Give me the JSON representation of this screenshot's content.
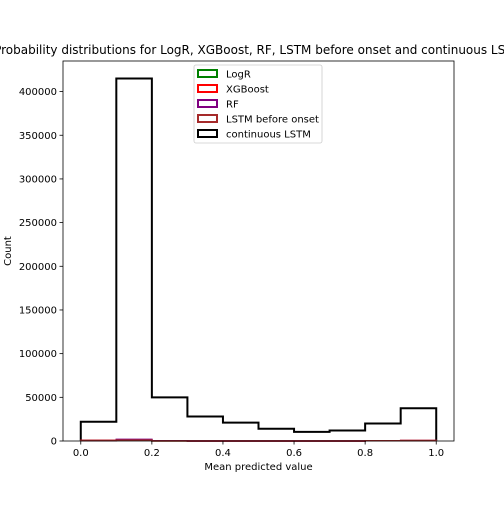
{
  "chart_data": {
    "type": "bar",
    "title": "Probability distributions for LogR, XGBoost, RF, LSTM before onset and continuous LSTM",
    "xlabel": "Mean predicted value",
    "ylabel": "Count",
    "xlim": [
      -0.05,
      1.05
    ],
    "ylim": [
      0,
      435000
    ],
    "bin_edges": [
      0.0,
      0.1,
      0.2,
      0.3,
      0.4,
      0.5,
      0.6,
      0.7,
      0.8,
      0.9,
      1.0
    ],
    "x_ticks": [
      0.0,
      0.2,
      0.4,
      0.6,
      0.8,
      1.0
    ],
    "x_tick_labels": [
      "0.0",
      "0.2",
      "0.4",
      "0.6",
      "0.8",
      "1.0"
    ],
    "y_ticks": [
      0,
      50000,
      100000,
      150000,
      200000,
      250000,
      300000,
      350000,
      400000
    ],
    "y_tick_labels": [
      "0",
      "50000",
      "100000",
      "150000",
      "200000",
      "250000",
      "300000",
      "350000",
      "400000"
    ],
    "histtype": "step",
    "grid": false,
    "legend_position": "top-center",
    "series": [
      {
        "name": "LogR",
        "color": "#008000",
        "values": [
          600,
          1200,
          200,
          50,
          30,
          20,
          15,
          20,
          300,
          500
        ]
      },
      {
        "name": "XGBoost",
        "color": "#ff0000",
        "values": [
          700,
          1500,
          200,
          50,
          30,
          20,
          15,
          20,
          350,
          600
        ]
      },
      {
        "name": "RF",
        "color": "#800080",
        "values": [
          500,
          1800,
          250,
          60,
          40,
          25,
          15,
          25,
          300,
          400
        ]
      },
      {
        "name": "LSTM before onset",
        "color": "#a52a2a",
        "values": [
          400,
          1000,
          150,
          50,
          30,
          20,
          15,
          20,
          250,
          350
        ]
      },
      {
        "name": "continuous LSTM",
        "color": "#000000",
        "values": [
          22000,
          415000,
          50000,
          28000,
          21000,
          14000,
          10500,
          12000,
          20000,
          37500
        ]
      }
    ]
  }
}
